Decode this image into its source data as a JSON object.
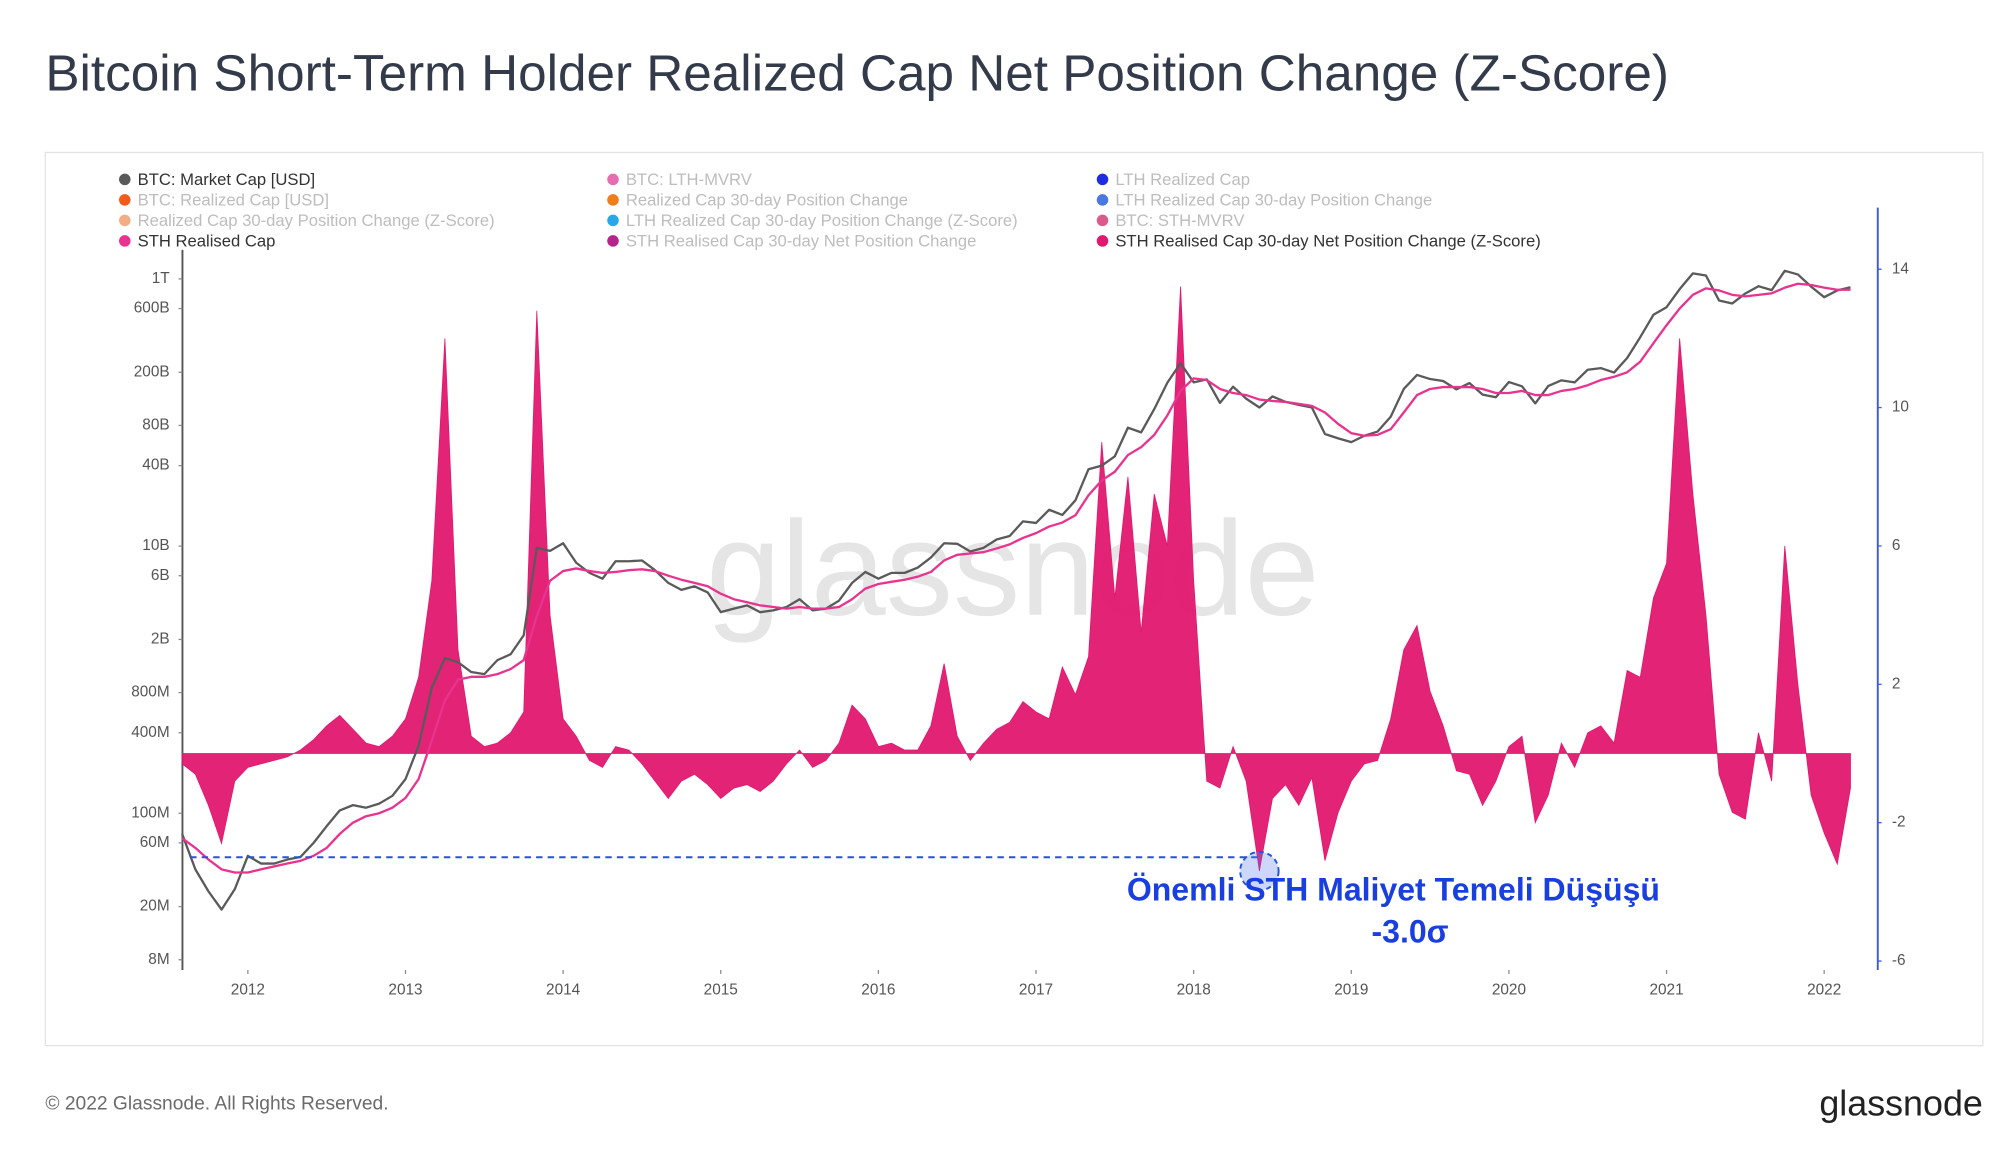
{
  "chart_data": {
    "type": "line",
    "title": "Bitcoin Short-Term Holder Realized Cap Net Position Change (Z-Score)",
    "yscale": "log",
    "grid": false,
    "xlim": [
      2011.585,
      2022.34
    ],
    "xticks": [
      2012,
      2013,
      2014,
      2015,
      2016,
      2017,
      2018,
      2019,
      2020,
      2021,
      2022
    ],
    "ylim": [
      6700000,
      3200000000000
    ],
    "yticks": [
      {
        "value": 8000000.0,
        "label": "8M"
      },
      {
        "value": 20000000.0,
        "label": "20M"
      },
      {
        "value": 60000000.0,
        "label": "60M"
      },
      {
        "value": 100000000.0,
        "label": "100M"
      },
      {
        "value": 400000000.0,
        "label": "400M"
      },
      {
        "value": 800000000.0,
        "label": "800M"
      },
      {
        "value": 2000000000.0,
        "label": "2B"
      },
      {
        "value": 6000000000.0,
        "label": "6B"
      },
      {
        "value": 10000000000.0,
        "label": "10B"
      },
      {
        "value": 40000000000.0,
        "label": "40B"
      },
      {
        "value": 80000000000.0,
        "label": "80B"
      },
      {
        "value": 200000000000.0,
        "label": "200B"
      },
      {
        "value": 600000000000.0,
        "label": "600B"
      },
      {
        "value": 1000000000000.0,
        "label": "1T"
      }
    ],
    "y2lim": [
      -6.26,
      15.67
    ],
    "y2ticks": [
      -6,
      -2,
      2,
      6,
      10,
      14
    ],
    "x": [
      2011.583,
      2011.667,
      2011.75,
      2011.833,
      2011.917,
      2012,
      2012.083,
      2012.167,
      2012.25,
      2012.333,
      2012.417,
      2012.5,
      2012.583,
      2012.667,
      2012.75,
      2012.833,
      2012.917,
      2013,
      2013.083,
      2013.167,
      2013.25,
      2013.333,
      2013.417,
      2013.5,
      2013.583,
      2013.667,
      2013.75,
      2013.833,
      2013.917,
      2014,
      2014.083,
      2014.167,
      2014.25,
      2014.333,
      2014.417,
      2014.5,
      2014.583,
      2014.667,
      2014.75,
      2014.833,
      2014.917,
      2015,
      2015.083,
      2015.167,
      2015.25,
      2015.333,
      2015.417,
      2015.5,
      2015.583,
      2015.667,
      2015.75,
      2015.833,
      2015.917,
      2016,
      2016.083,
      2016.167,
      2016.25,
      2016.333,
      2016.417,
      2016.5,
      2016.583,
      2016.667,
      2016.75,
      2016.833,
      2016.917,
      2017,
      2017.083,
      2017.167,
      2017.25,
      2017.333,
      2017.417,
      2017.5,
      2017.583,
      2017.667,
      2017.75,
      2017.833,
      2017.917,
      2018,
      2018.083,
      2018.167,
      2018.25,
      2018.333,
      2018.417,
      2018.5,
      2018.583,
      2018.667,
      2018.75,
      2018.833,
      2018.917,
      2019,
      2019.083,
      2019.167,
      2019.25,
      2019.333,
      2019.417,
      2019.5,
      2019.583,
      2019.667,
      2019.75,
      2019.833,
      2019.917,
      2020,
      2020.083,
      2020.167,
      2020.25,
      2020.333,
      2020.417,
      2020.5,
      2020.583,
      2020.667,
      2020.75,
      2020.833,
      2020.917,
      2021,
      2021.083,
      2021.167,
      2021.25,
      2021.333,
      2021.417,
      2021.5,
      2021.583,
      2021.667,
      2021.75,
      2021.833,
      2021.917,
      2022,
      2022.083,
      2022.167
    ],
    "series": [
      {
        "name": "BTC: Market Cap [USD]",
        "color": "#5a5a5a",
        "axis": "y",
        "values": [
          70000000.0,
          38000000.0,
          26000000.0,
          19000000.0,
          27000000.0,
          48000000.0,
          42000000.0,
          42000000.0,
          45000000.0,
          47000000.0,
          60000000.0,
          80000000.0,
          105000000.0,
          115000000.0,
          110000000.0,
          118000000.0,
          135000000.0,
          180000000.0,
          320000000.0,
          870000000.0,
          1450000000.0,
          1350000000.0,
          1140000000.0,
          1100000000.0,
          1400000000.0,
          1550000000.0,
          2150000000.0,
          9700000000.0,
          9200000000.0,
          10500000000.0,
          7500000000.0,
          6300000000.0,
          5700000000.0,
          7700000000.0,
          7700000000.0,
          7800000000.0,
          6600000000.0,
          5300000000.0,
          4700000000.0,
          5000000000.0,
          4500000000.0,
          3200000000.0,
          3400000000.0,
          3600000000.0,
          3200000000.0,
          3300000000.0,
          3500000000.0,
          4000000000.0,
          3300000000.0,
          3400000000.0,
          3900000000.0,
          5300000000.0,
          6400000000.0,
          5700000000.0,
          6300000000.0,
          6300000000.0,
          6900000000.0,
          8200000000.0,
          10500000000.0,
          10400000000.0,
          9100000000.0,
          9700000000.0,
          11200000000.0,
          11900000000.0,
          15300000000.0,
          14900000000.0,
          18700000000.0,
          17100000000.0,
          22000000000.0,
          37600000000.0,
          40000000000.0,
          47000000000.0,
          77000000000.0,
          71000000000.0,
          106000000000.0,
          167000000000.0,
          234000000000.0,
          168000000000.0,
          177000000000.0,
          118000000000.0,
          156000000000.0,
          127000000000.0,
          109000000000.0,
          132000000000.0,
          120000000000.0,
          114000000000.0,
          109000000000.0,
          69000000000.0,
          64000000000.0,
          60000000000.0,
          67000000000.0,
          72000000000.0,
          93000000000.0,
          150000000000.0,
          191000000000.0,
          178000000000.0,
          172000000000.0,
          149000000000.0,
          166000000000.0,
          136000000000.0,
          130000000000.0,
          169000000000.0,
          157000000000.0,
          117000000000.0,
          158000000000.0,
          174000000000.0,
          168000000000.0,
          209000000000.0,
          215000000000.0,
          199000000000.0,
          256000000000.0,
          366000000000.0,
          539000000000.0,
          614000000000.0,
          838000000000.0,
          1100000000000.0,
          1060000000000.0,
          690000000000.0,
          655000000000.0,
          778000000000.0,
          882000000000.0,
          824000000000.0,
          1150000000000.0,
          1080000000000.0,
          875000000000.0,
          730000000000.0,
          820000000000.0,
          866000000000.0
        ]
      },
      {
        "name": "STH Realised Cap",
        "color": "#e8338f",
        "axis": "y",
        "values": [
          65000000.0,
          55000000.0,
          45000000.0,
          38000000.0,
          36000000.0,
          36000000.0,
          38000000.0,
          40000000.0,
          42000000.0,
          44000000.0,
          48000000.0,
          55000000.0,
          70000000.0,
          85000000.0,
          95000000.0,
          100000000.0,
          110000000.0,
          130000000.0,
          180000000.0,
          350000000.0,
          700000000.0,
          1000000000.0,
          1050000000.0,
          1050000000.0,
          1100000000.0,
          1200000000.0,
          1400000000.0,
          3000000000.0,
          5500000000.0,
          6500000000.0,
          6800000000.0,
          6500000000.0,
          6300000000.0,
          6400000000.0,
          6600000000.0,
          6700000000.0,
          6500000000.0,
          6000000000.0,
          5600000000.0,
          5300000000.0,
          5000000000.0,
          4400000000.0,
          4000000000.0,
          3800000000.0,
          3600000000.0,
          3500000000.0,
          3400000000.0,
          3500000000.0,
          3400000000.0,
          3400000000.0,
          3500000000.0,
          4000000000.0,
          4800000000.0,
          5200000000.0,
          5400000000.0,
          5600000000.0,
          5900000000.0,
          6400000000.0,
          7800000000.0,
          8600000000.0,
          8800000000.0,
          9000000000.0,
          9600000000.0,
          10300000000.0,
          11500000000.0,
          12500000000.0,
          14000000000.0,
          15000000000.0,
          17000000000.0,
          24000000000.0,
          31000000000.0,
          36000000000.0,
          48000000000.0,
          55000000000.0,
          68000000000.0,
          95000000000.0,
          145000000000.0,
          180000000000.0,
          175000000000.0,
          150000000000.0,
          140000000000.0,
          135000000000.0,
          125000000000.0,
          122000000000.0,
          120000000000.0,
          116000000000.0,
          112000000000.0,
          100000000000.0,
          82000000000.0,
          70000000000.0,
          67000000000.0,
          68000000000.0,
          75000000000.0,
          100000000000.0,
          135000000000.0,
          150000000000.0,
          155000000000.0,
          155000000000.0,
          155000000000.0,
          150000000000.0,
          140000000000.0,
          140000000000.0,
          145000000000.0,
          135000000000.0,
          135000000000.0,
          145000000000.0,
          150000000000.0,
          160000000000.0,
          175000000000.0,
          185000000000.0,
          200000000000.0,
          240000000000.0,
          330000000000.0,
          450000000000.0,
          600000000000.0,
          760000000000.0,
          850000000000.0,
          820000000000.0,
          760000000000.0,
          740000000000.0,
          760000000000.0,
          780000000000.0,
          860000000000.0,
          920000000000.0,
          900000000000.0,
          860000000000.0,
          830000000000.0,
          830000000000.0
        ]
      },
      {
        "name": "STH Realised Cap 30-day Net Position Change (Z-Score)",
        "color": "#e2176f",
        "axis": "y2",
        "values": [
          -0.3,
          -0.6,
          -1.5,
          -2.6,
          -0.8,
          -0.4,
          -0.3,
          -0.2,
          -0.1,
          0.1,
          0.4,
          0.8,
          1.1,
          0.7,
          0.3,
          0.2,
          0.5,
          1.0,
          2.2,
          5.0,
          12.0,
          3.0,
          0.5,
          0.2,
          0.3,
          0.6,
          1.2,
          12.8,
          4.0,
          1.0,
          0.5,
          -0.2,
          -0.4,
          0.2,
          0.1,
          -0.3,
          -0.8,
          -1.3,
          -0.8,
          -0.6,
          -0.9,
          -1.3,
          -1.0,
          -0.9,
          -1.1,
          -0.8,
          -0.3,
          0.1,
          -0.4,
          -0.2,
          0.3,
          1.4,
          1.0,
          0.2,
          0.3,
          0.1,
          0.1,
          0.8,
          2.6,
          0.5,
          -0.2,
          0.3,
          0.7,
          0.9,
          1.5,
          1.2,
          1.0,
          2.5,
          1.7,
          2.8,
          9.0,
          4.5,
          8.0,
          3.5,
          7.5,
          6.0,
          13.5,
          5.0,
          -0.8,
          -1.0,
          0.2,
          -0.8,
          -3.4,
          -1.3,
          -0.9,
          -1.5,
          -0.7,
          -3.1,
          -1.7,
          -0.8,
          -0.3,
          -0.2,
          1.0,
          3.0,
          3.7,
          1.8,
          0.8,
          -0.5,
          -0.6,
          -1.5,
          -0.8,
          0.2,
          0.5,
          -2.0,
          -1.2,
          0.3,
          -0.4,
          0.6,
          0.8,
          0.3,
          2.4,
          2.2,
          4.5,
          5.5,
          12.0,
          7.5,
          4.0,
          -0.6,
          -1.7,
          -1.9,
          0.6,
          -0.8,
          6.0,
          2.0,
          -1.2,
          -2.3,
          -3.2,
          -1.0
        ]
      }
    ],
    "inactive_series": [
      {
        "name": "BTC: LTH-MVRV",
        "color": "#e36fb0"
      },
      {
        "name": "LTH Realized Cap",
        "color": "#1f2de0"
      },
      {
        "name": "BTC: Realized Cap [USD]",
        "color": "#f25c1a"
      },
      {
        "name": "Realized Cap 30-day Position Change",
        "color": "#ef7d1a"
      },
      {
        "name": "LTH Realized Cap 30-day Position Change",
        "color": "#4a78e0"
      },
      {
        "name": "Realized Cap 30-day Position Change (Z-Score)",
        "color": "#f3ad84"
      },
      {
        "name": "LTH Realized Cap 30-day Position Change (Z-Score)",
        "color": "#2aa7e8"
      },
      {
        "name": "BTC: STH-MVRV",
        "color": "#db5a8e"
      },
      {
        "name": "STH Realised Cap 30-day Net Position Change",
        "color": "#b5248b"
      }
    ],
    "annotation": {
      "text": "Önemli STH Maliyet Temeli Düşüşü",
      "color": "#1a3fe0",
      "threshold": {
        "value": -3,
        "label": "-3.0σ"
      }
    }
  },
  "watermark": "glassnode",
  "footer": {
    "copyright": "© 2022 Glassnode. All Rights Reserved.",
    "logo": "glassnode"
  }
}
